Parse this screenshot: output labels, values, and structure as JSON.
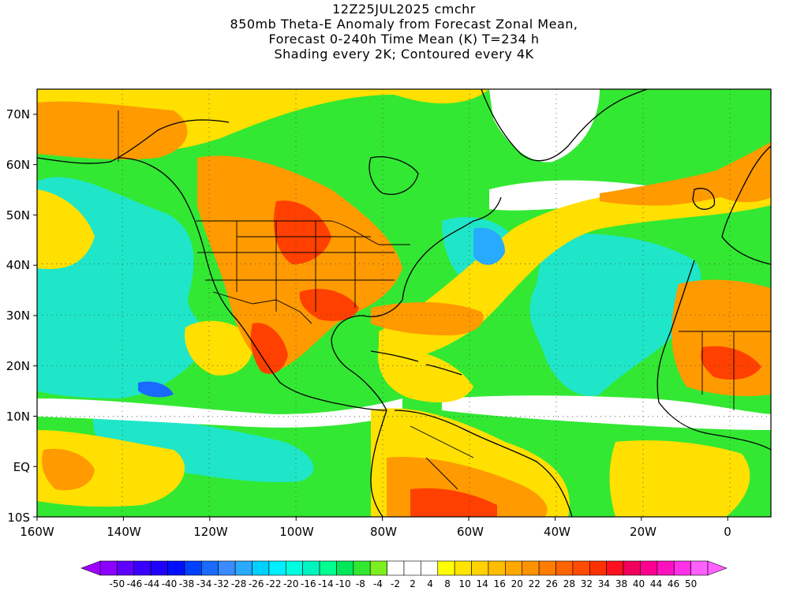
{
  "title": {
    "line1": "12Z25JUL2025 cmchr",
    "line2": "850mb Theta-E Anomaly from Forecast Zonal Mean,",
    "line3": "Forecast 0-240h Time Mean (K) T=234 h",
    "line4": "Shading every 2K; Contoured every 4K"
  },
  "map": {
    "lon_range": [
      -160,
      10
    ],
    "lat_range": [
      -10,
      75
    ],
    "lat_labels": [
      "10S",
      "EQ",
      "10N",
      "20N",
      "30N",
      "40N",
      "50N",
      "60N",
      "70N"
    ],
    "lat_values": [
      -10,
      0,
      10,
      20,
      30,
      40,
      50,
      60,
      70
    ],
    "lon_labels": [
      "160W",
      "140W",
      "120W",
      "100W",
      "80W",
      "60W",
      "40W",
      "20W",
      "0"
    ],
    "lon_values": [
      -160,
      -140,
      -120,
      -100,
      -80,
      -60,
      -40,
      -20,
      0
    ]
  },
  "colorbar": {
    "labels": [
      "-50",
      "-46",
      "-44",
      "-40",
      "-38",
      "-34",
      "-32",
      "-28",
      "-26",
      "-22",
      "-20",
      "-16",
      "-14",
      "-10",
      "-8",
      "-4",
      "-2",
      "2",
      "4",
      "8",
      "10",
      "14",
      "16",
      "20",
      "22",
      "26",
      "28",
      "32",
      "34",
      "38",
      "40",
      "44",
      "46",
      "50"
    ],
    "colors": [
      "#8b00ff",
      "#5d00ff",
      "#3a00ff",
      "#2000ff",
      "#0010ff",
      "#0040ff",
      "#1a6aff",
      "#3c8aff",
      "#28aaff",
      "#00d0ff",
      "#00f0ff",
      "#00ffe0",
      "#00f4c0",
      "#00ff90",
      "#00e85a",
      "#30e830",
      "#7dee1e",
      "#ffffff",
      "#ffffff",
      "#ffffff",
      "#ffff00",
      "#ffe400",
      "#ffd200",
      "#ffbc00",
      "#ffa800",
      "#ff9200",
      "#ff7c00",
      "#ff6400",
      "#ff4c00",
      "#ff3000",
      "#ff1020",
      "#f0005a",
      "#ff0090",
      "#ff10c0",
      "#ff30e8",
      "#ff60ff"
    ]
  },
  "palette": {
    "background": "#ffffff",
    "green": "#33e833",
    "cyan": "#1fe6c8",
    "yellow": "#ffe000",
    "orange": "#ff9a00",
    "red": "#ff4000"
  }
}
